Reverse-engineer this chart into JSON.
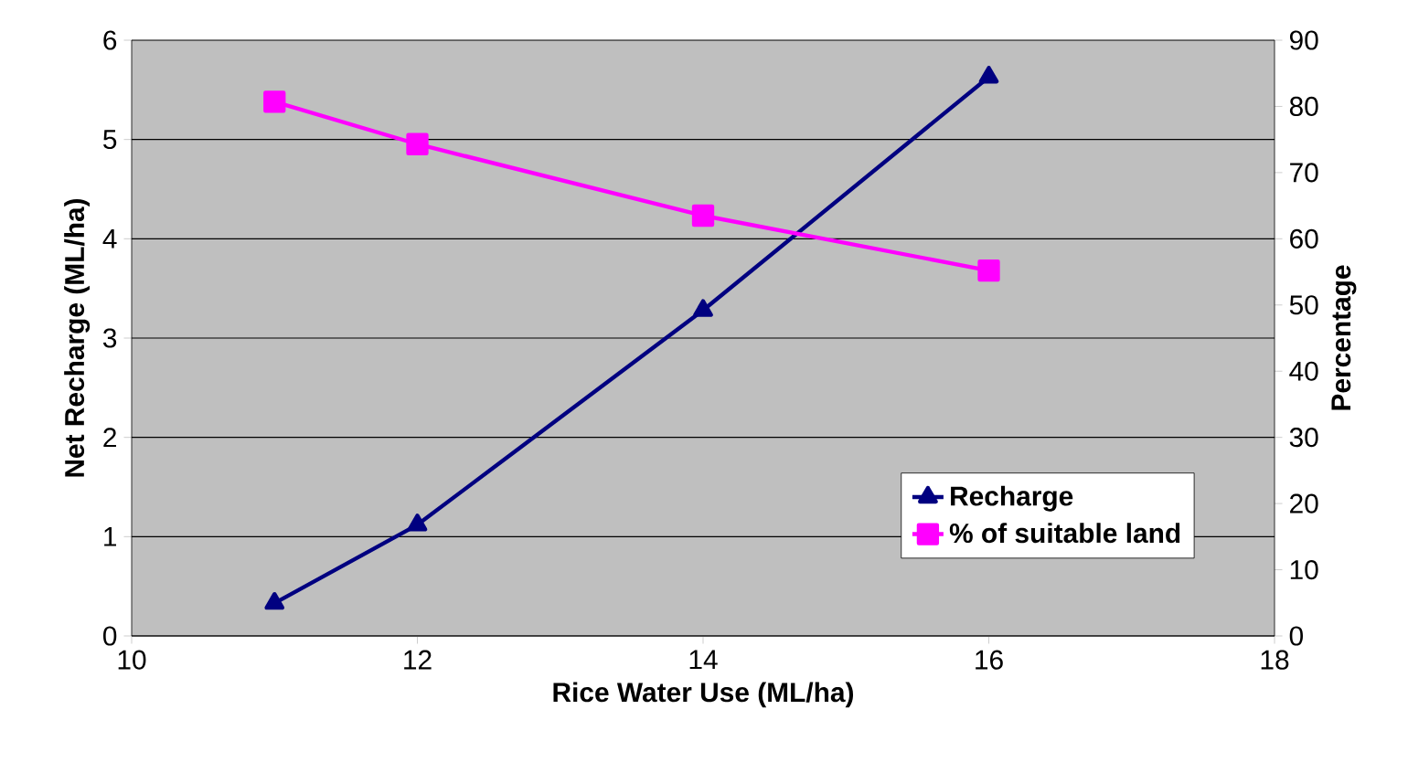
{
  "chart_data": {
    "type": "line",
    "xlabel": "Rice Water Use (ML/ha)",
    "ylabel": "Net Recharge (ML/ha)",
    "y2label": "Percentage",
    "x": [
      11,
      12,
      14,
      16
    ],
    "series": [
      {
        "name": "Recharge",
        "color": "#000080",
        "values": [
          0.33,
          1.12,
          3.28,
          5.63
        ],
        "marker": "triangle"
      },
      {
        "name": "% of suitable land",
        "color": "#ff00ff",
        "values": [
          80.7,
          74.3,
          63.5,
          55.2
        ],
        "marker": "square",
        "axis": "y2"
      }
    ],
    "xlim": [
      10,
      18
    ],
    "xticks": [
      10,
      12,
      14,
      16,
      18
    ],
    "ylim": [
      0,
      6
    ],
    "yticks": [
      0,
      1,
      2,
      3,
      4,
      5,
      6
    ],
    "y2lim": [
      0,
      90
    ],
    "y2ticks": [
      0,
      10,
      20,
      30,
      40,
      50,
      60,
      70,
      80,
      90
    ],
    "grid": "y",
    "legend": "bottom right",
    "line_style": "solid"
  }
}
